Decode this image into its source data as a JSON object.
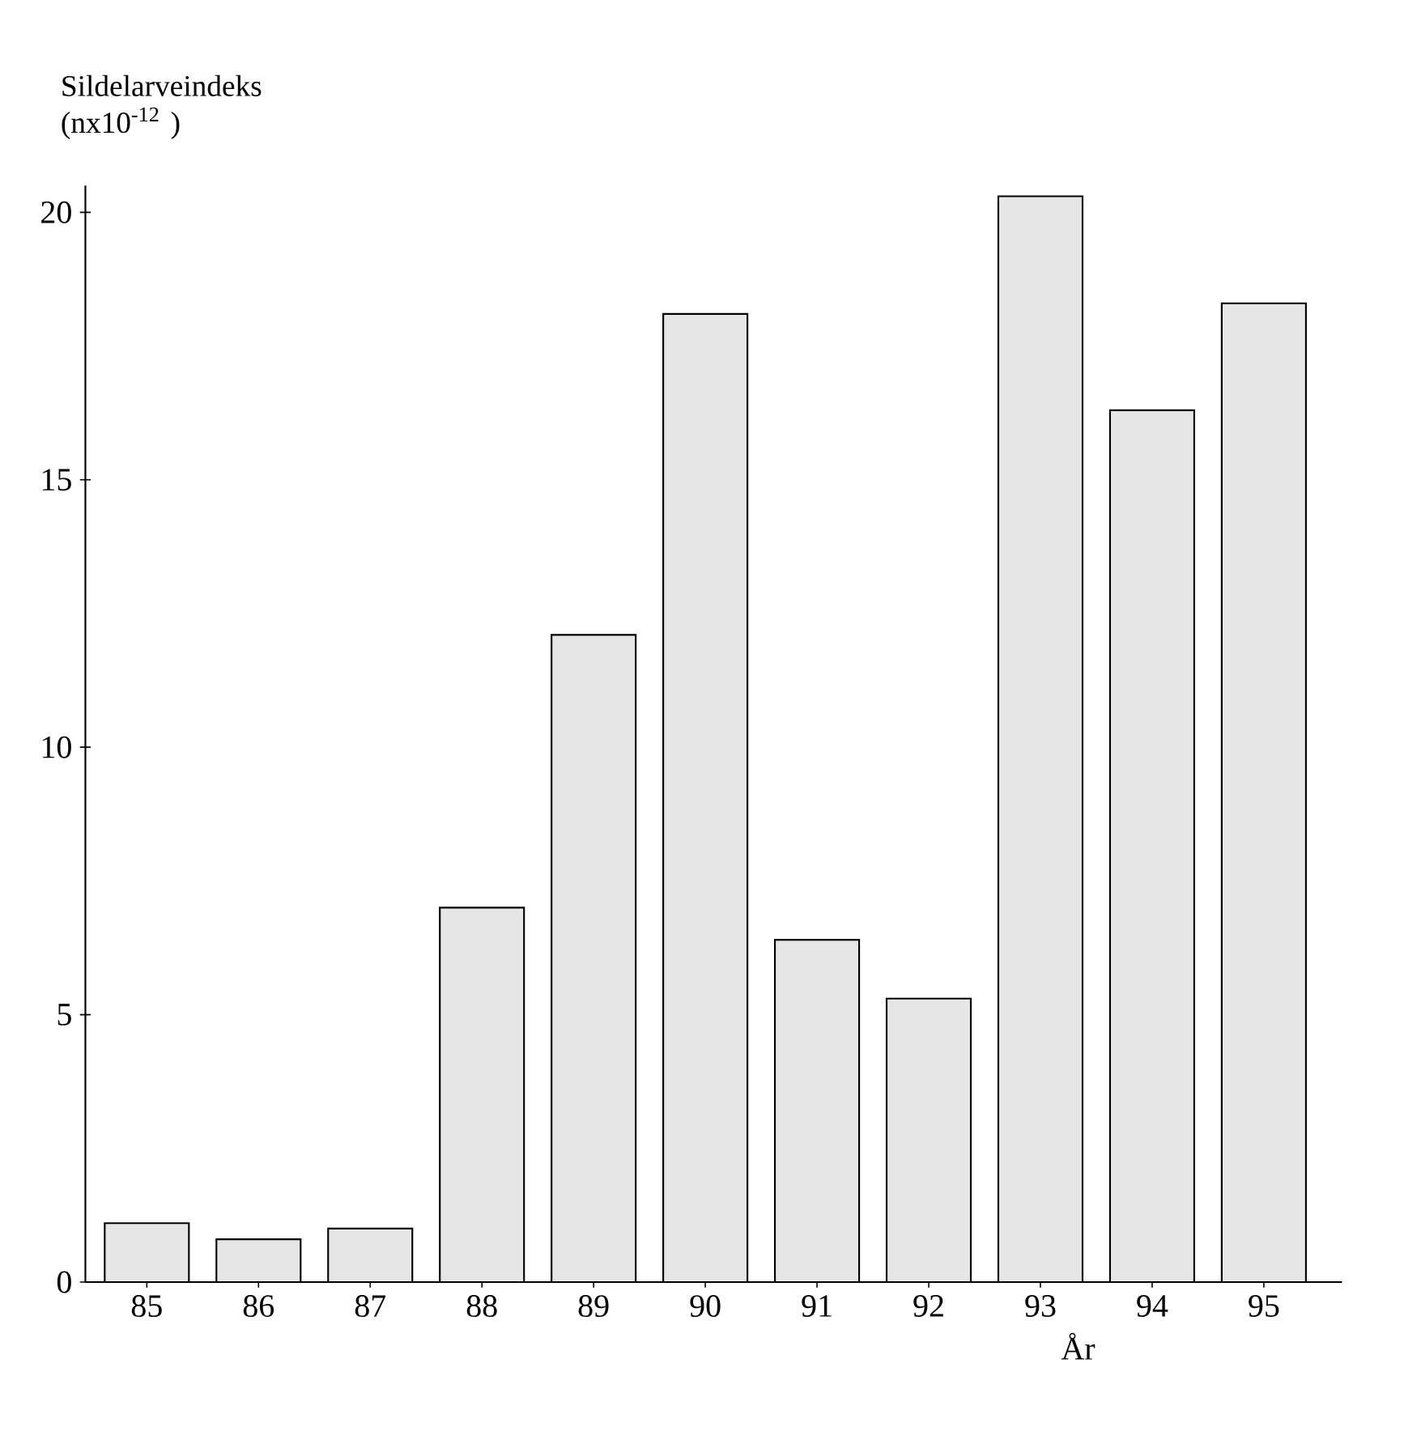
{
  "chart_data": {
    "type": "bar",
    "xlabel": "År",
    "ylabel": "Sildelarveindeks (nx10$^{-12}$ )",
    "categories": [
      "85",
      "86",
      "87",
      "88",
      "89",
      "90",
      "91",
      "92",
      "93",
      "94",
      "95"
    ],
    "values": [
      1.1,
      0.8,
      1.0,
      7.0,
      12.1,
      18.1,
      6.4,
      5.3,
      20.3,
      16.3,
      18.3
    ],
    "color": "#e6e6e6",
    "ylim": [
      0,
      20.5
    ],
    "yticks": [
      0,
      5,
      10,
      15,
      20
    ]
  }
}
